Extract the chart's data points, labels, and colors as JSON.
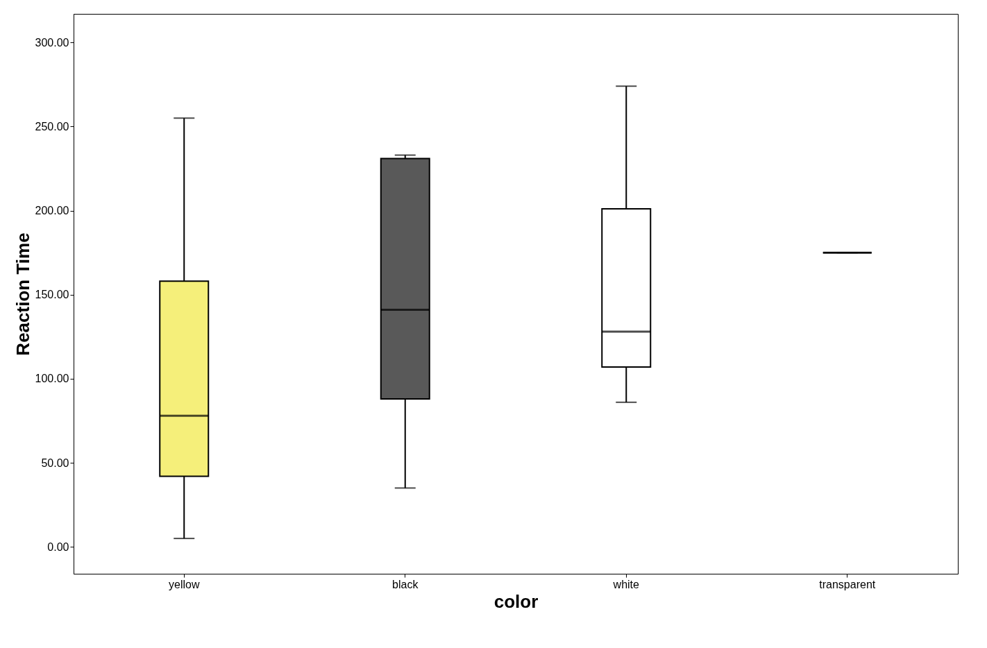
{
  "chart_data": {
    "type": "box",
    "xlabel": "color",
    "ylabel": "Reaction Time",
    "categories": [
      "yellow",
      "black",
      "white",
      "transparent"
    ],
    "colors": [
      "#f5ef7a",
      "#595959",
      "#ffffff",
      "#000000"
    ],
    "boxes": [
      {
        "low": 5,
        "q1": 42,
        "median": 78,
        "q3": 158,
        "high": 255
      },
      {
        "low": 35,
        "q1": 88,
        "median": 141,
        "q3": 231,
        "high": 233
      },
      {
        "low": 86,
        "q1": 107,
        "median": 128,
        "q3": 201,
        "high": 274
      },
      {
        "low": 175,
        "q1": 175,
        "median": 175,
        "q3": 175,
        "high": 175
      }
    ],
    "ylim": [
      -16,
      317
    ],
    "yticks": [
      {
        "value": 0,
        "label": "0.00"
      },
      {
        "value": 50,
        "label": "50.00"
      },
      {
        "value": 100,
        "label": "100.00"
      },
      {
        "value": 150,
        "label": "150.00"
      },
      {
        "value": 200,
        "label": "200.00"
      },
      {
        "value": 250,
        "label": "250.00"
      },
      {
        "value": 300,
        "label": "300.00"
      }
    ],
    "grid": false
  }
}
